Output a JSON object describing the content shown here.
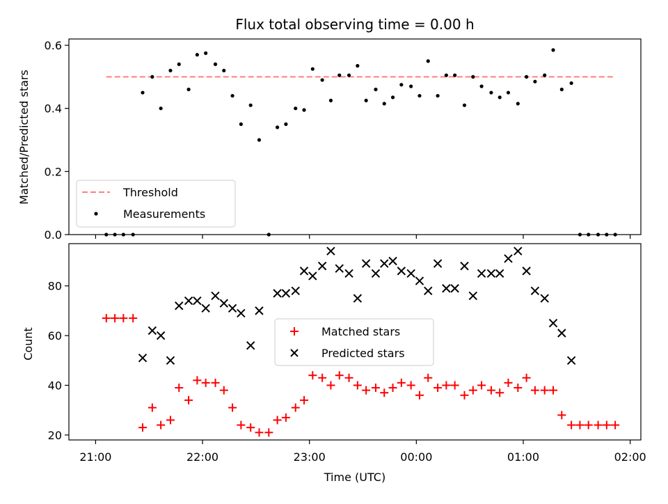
{
  "chart_data": {
    "type": "scatter",
    "title": "Flux total observing time = 0.00 h",
    "xlabel": "Time (UTC)",
    "x_ticks": [
      "21:00",
      "22:00",
      "23:00",
      "00:00",
      "01:00",
      "02:00"
    ],
    "x_tick_hours": [
      0,
      1,
      2,
      3,
      4,
      5
    ],
    "xlim_hours_after_2100": [
      -0.25,
      5.1
    ],
    "x": [
      0.1,
      0.18,
      0.26,
      0.35,
      0.44,
      0.53,
      0.61,
      0.7,
      0.78,
      0.87,
      0.95,
      1.03,
      1.12,
      1.2,
      1.28,
      1.36,
      1.45,
      1.53,
      1.62,
      1.7,
      1.78,
      1.87,
      1.95,
      2.03,
      2.12,
      2.2,
      2.28,
      2.37,
      2.45,
      2.53,
      2.62,
      2.7,
      2.78,
      2.86,
      2.95,
      3.03,
      3.11,
      3.2,
      3.28,
      3.36,
      3.45,
      3.53,
      3.61,
      3.7,
      3.78,
      3.86,
      3.95,
      4.03,
      4.11,
      4.2,
      4.28,
      4.36,
      4.45,
      4.53,
      4.61,
      4.7,
      4.78,
      4.86
    ],
    "panels": [
      {
        "ylabel": "Matched/Predicted stars",
        "ylim": [
          0,
          0.62
        ],
        "y_ticks": [
          "0.0",
          "0.2",
          "0.4",
          "0.6"
        ],
        "y_tick_values": [
          0,
          0.2,
          0.4,
          0.6
        ],
        "threshold": {
          "name": "Threshold",
          "value": 0.5,
          "x_range": [
            0.1,
            4.86
          ],
          "color": "#ff7f7f"
        },
        "series": [
          {
            "name": "Measurements",
            "marker": "dot",
            "color": "#000000",
            "values": [
              0,
              0,
              0,
              0,
              0.45,
              0.5,
              0.4,
              0.52,
              0.54,
              0.46,
              0.57,
              0.575,
              0.54,
              0.52,
              0.44,
              0.35,
              0.41,
              0.3,
              0,
              0.34,
              0.35,
              0.4,
              0.395,
              0.525,
              0.49,
              0.425,
              0.505,
              0.505,
              0.535,
              0.425,
              0.46,
              0.415,
              0.435,
              0.475,
              0.47,
              0.44,
              0.55,
              0.44,
              0.505,
              0.505,
              0.41,
              0.5,
              0.47,
              0.45,
              0.435,
              0.45,
              0.415,
              0.5,
              0.485,
              0.505,
              0.585,
              0.46,
              0.48,
              0,
              0,
              0,
              0,
              0
            ]
          }
        ],
        "legend_position": "lower-left"
      },
      {
        "ylabel": "Count",
        "ylim": [
          18,
          97
        ],
        "y_ticks": [
          "20",
          "40",
          "60",
          "80"
        ],
        "y_tick_values": [
          20,
          40,
          60,
          80
        ],
        "series": [
          {
            "name": "Matched stars",
            "marker": "plus",
            "color": "#ff0000",
            "values": [
              67,
              67,
              67,
              67,
              23,
              31,
              24,
              26,
              39,
              34,
              42,
              41,
              41,
              38,
              31,
              24,
              23,
              21,
              21,
              26,
              27,
              31,
              34,
              44,
              43,
              40,
              44,
              43,
              40,
              38,
              39,
              37,
              39,
              41,
              40,
              36,
              43,
              39,
              40,
              40,
              36,
              38,
              40,
              38,
              37,
              41,
              39,
              43,
              38,
              38,
              38,
              28,
              24,
              24,
              24,
              24,
              24,
              24
            ]
          },
          {
            "name": "Predicted stars",
            "marker": "x",
            "color": "#000000",
            "values": [
              null,
              null,
              null,
              null,
              51,
              62,
              60,
              50,
              72,
              74,
              74,
              71,
              76,
              73,
              71,
              69,
              56,
              70,
              null,
              77,
              77,
              78,
              86,
              84,
              88,
              94,
              87,
              85,
              75,
              89,
              85,
              89,
              90,
              86,
              85,
              82,
              78,
              89,
              79,
              79,
              88,
              76,
              85,
              85,
              85,
              91,
              94,
              86,
              78,
              75,
              65,
              61,
              50,
              null,
              null,
              null,
              null,
              null
            ]
          }
        ],
        "legend_position": "center"
      }
    ]
  }
}
